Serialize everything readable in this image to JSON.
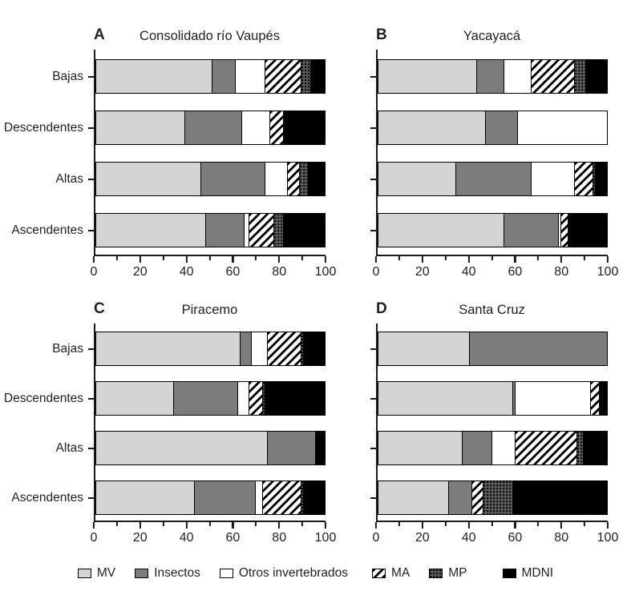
{
  "figure": {
    "background": "#ffffff"
  },
  "colors": {
    "text": "#231f20",
    "axis": "#1a1a1a",
    "bar_border": "#000000",
    "mv_fill": "#d4d4d4",
    "insectos_fill": "#7c7c7c",
    "otros_fill": "#ffffff",
    "ma_stripe": "#000000",
    "ma_bg": "#ffffff",
    "mp_bg": "#5a5a5a",
    "mp_dot": "#000000",
    "mdni_fill": "#000000"
  },
  "legend": {
    "items": [
      {
        "key": "mv",
        "label": "MV",
        "swatch": "solid-light-gray"
      },
      {
        "key": "insectos",
        "label": "Insectos",
        "swatch": "solid-dark-gray"
      },
      {
        "key": "otros",
        "label": "Otros invertebrados",
        "swatch": "solid-white"
      },
      {
        "key": "ma",
        "label": "MA",
        "swatch": "diagonal-hatch"
      },
      {
        "key": "mp",
        "label": "MP",
        "swatch": "dotted-dark-gray"
      },
      {
        "key": "mdni",
        "label": "MDNI",
        "swatch": "solid-black"
      }
    ]
  },
  "chart_data": [
    {
      "type": "bar",
      "panel": "A",
      "title": "Consolidado río Vaupés",
      "orientation": "horizontal-stacked",
      "show_category_labels": true,
      "categories": [
        "Bajas",
        "Descendentes",
        "Altas",
        "Ascendentes"
      ],
      "xlim": [
        0,
        100
      ],
      "x_ticks": [
        0,
        20,
        40,
        60,
        80,
        100
      ],
      "x_minor_ticks": [
        10,
        30,
        50,
        70,
        90
      ],
      "series": [
        {
          "name": "MV",
          "key": "mv",
          "values": [
            51,
            39,
            46,
            48
          ]
        },
        {
          "name": "Insectos",
          "key": "insectos",
          "values": [
            10,
            25,
            28,
            17
          ]
        },
        {
          "name": "Otros invertebrados",
          "key": "otros",
          "values": [
            13,
            12,
            10,
            2
          ]
        },
        {
          "name": "MA",
          "key": "ma",
          "values": [
            16,
            6,
            5,
            11
          ]
        },
        {
          "name": "MP",
          "key": "mp",
          "values": [
            4,
            0,
            4,
            4
          ]
        },
        {
          "name": "MDNI",
          "key": "mdni",
          "values": [
            6,
            18,
            7,
            18
          ]
        }
      ]
    },
    {
      "type": "bar",
      "panel": "B",
      "title": "Yacayacá",
      "orientation": "horizontal-stacked",
      "show_category_labels": false,
      "categories": [
        "Bajas",
        "Descendentes",
        "Altas",
        "Ascendentes"
      ],
      "xlim": [
        0,
        100
      ],
      "x_ticks": [
        0,
        20,
        40,
        60,
        80,
        100
      ],
      "x_minor_ticks": [
        10,
        30,
        50,
        70,
        90
      ],
      "series": [
        {
          "name": "MV",
          "key": "mv",
          "values": [
            43,
            47,
            34,
            55
          ]
        },
        {
          "name": "Insectos",
          "key": "insectos",
          "values": [
            12,
            14,
            33,
            24
          ]
        },
        {
          "name": "Otros invertebrados",
          "key": "otros",
          "values": [
            12,
            39,
            19,
            1
          ]
        },
        {
          "name": "MA",
          "key": "ma",
          "values": [
            19,
            0,
            8,
            3
          ]
        },
        {
          "name": "MP",
          "key": "mp",
          "values": [
            5,
            0,
            1,
            0
          ]
        },
        {
          "name": "MDNI",
          "key": "mdni",
          "values": [
            9,
            0,
            5,
            17
          ]
        }
      ]
    },
    {
      "type": "bar",
      "panel": "C",
      "title": "Piracemo",
      "orientation": "horizontal-stacked",
      "show_category_labels": true,
      "categories": [
        "Bajas",
        "Descendentes",
        "Altas",
        "Ascendentes"
      ],
      "xlim": [
        0,
        100
      ],
      "x_ticks": [
        0,
        20,
        40,
        60,
        80,
        100
      ],
      "x_minor_ticks": [
        10,
        30,
        50,
        70,
        90
      ],
      "series": [
        {
          "name": "MV",
          "key": "mv",
          "values": [
            63,
            34,
            75,
            43
          ]
        },
        {
          "name": "Insectos",
          "key": "insectos",
          "values": [
            5,
            28,
            21,
            27
          ]
        },
        {
          "name": "Otros invertebrados",
          "key": "otros",
          "values": [
            7,
            5,
            0,
            3
          ]
        },
        {
          "name": "MA",
          "key": "ma",
          "values": [
            15,
            6,
            0,
            17
          ]
        },
        {
          "name": "MP",
          "key": "mp",
          "values": [
            1,
            1,
            0,
            1
          ]
        },
        {
          "name": "MDNI",
          "key": "mdni",
          "values": [
            9,
            26,
            4,
            9
          ]
        }
      ]
    },
    {
      "type": "bar",
      "panel": "D",
      "title": "Santa Cruz",
      "orientation": "horizontal-stacked",
      "show_category_labels": false,
      "categories": [
        "Bajas",
        "Descendentes",
        "Altas",
        "Ascendentes"
      ],
      "xlim": [
        0,
        100
      ],
      "x_ticks": [
        0,
        20,
        40,
        60,
        80,
        100
      ],
      "x_minor_ticks": [
        10,
        30,
        50,
        70,
        90
      ],
      "series": [
        {
          "name": "MV",
          "key": "mv",
          "values": [
            40,
            59,
            37,
            31
          ]
        },
        {
          "name": "Insectos",
          "key": "insectos",
          "values": [
            60,
            1,
            13,
            10
          ]
        },
        {
          "name": "Otros invertebrados",
          "key": "otros",
          "values": [
            0,
            33,
            10,
            0
          ]
        },
        {
          "name": "MA",
          "key": "ma",
          "values": [
            0,
            4,
            27,
            5
          ]
        },
        {
          "name": "MP",
          "key": "mp",
          "values": [
            0,
            0,
            3,
            13
          ]
        },
        {
          "name": "MDNI",
          "key": "mdni",
          "values": [
            0,
            3,
            10,
            41
          ]
        }
      ]
    }
  ]
}
